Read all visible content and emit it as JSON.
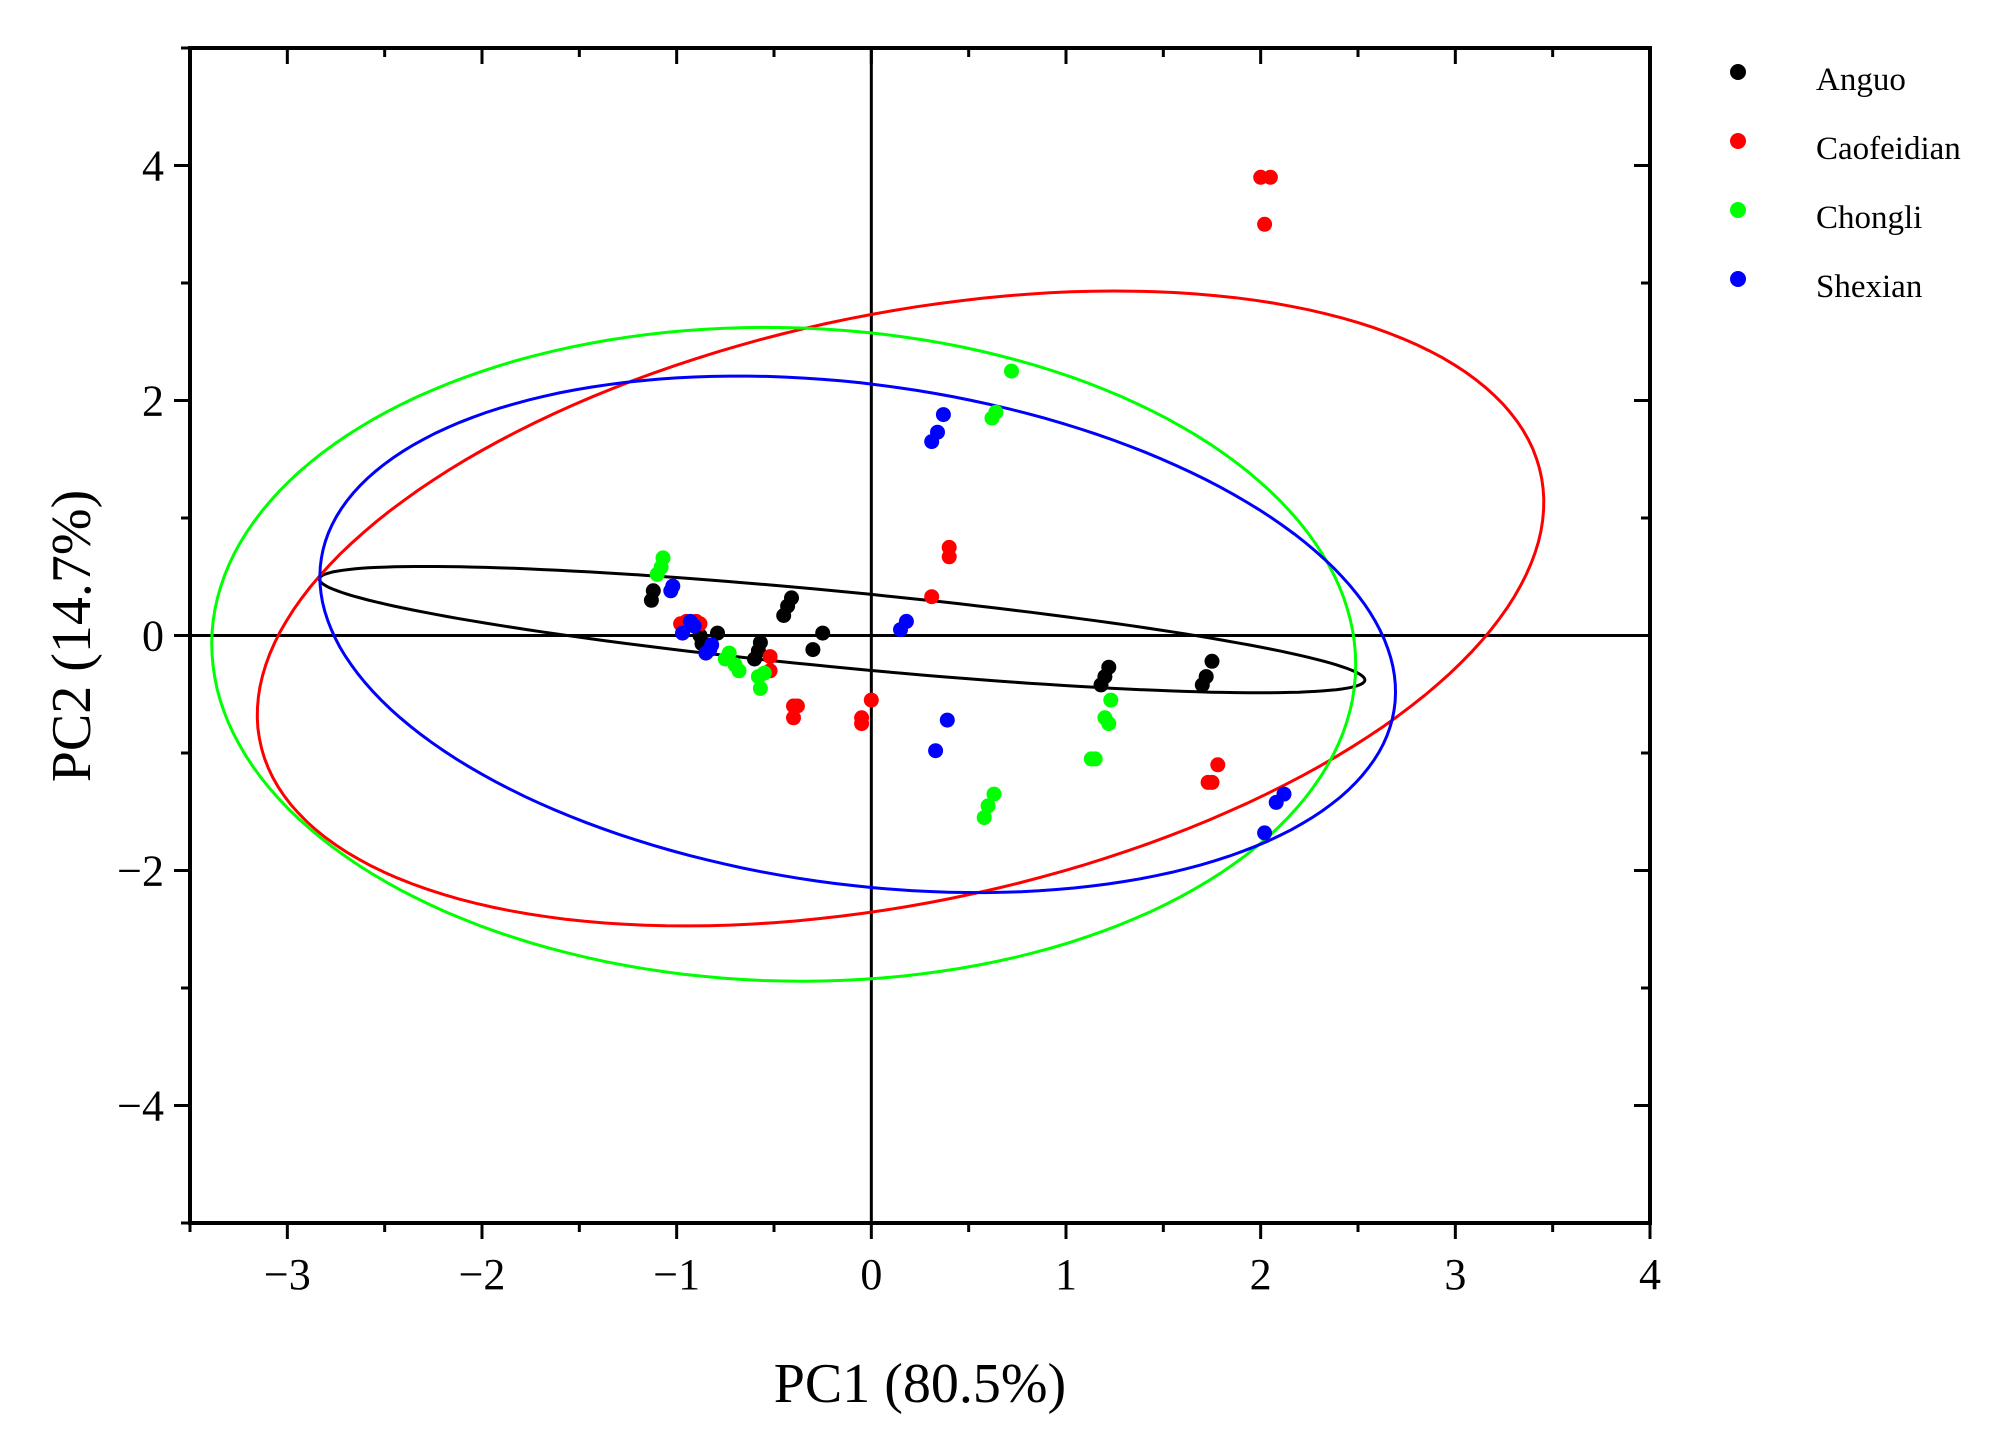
{
  "chart_data": {
    "type": "scatter",
    "title": "",
    "xlabel": "PC1 (80.5%)",
    "ylabel": "PC2 (14.7%)",
    "xlim": [
      -3.5,
      4
    ],
    "ylim": [
      -5,
      5
    ],
    "xticks": [
      -3,
      -2,
      -1,
      0,
      1,
      2,
      3,
      4
    ],
    "yticks": [
      -4,
      -2,
      0,
      2,
      4
    ],
    "xtick_labels": [
      "−3",
      "−2",
      "−1",
      "0",
      "1",
      "2",
      "3",
      "4"
    ],
    "ytick_labels": [
      "−4",
      "−2",
      "0",
      "2",
      "4"
    ],
    "grid": false,
    "reference_lines": {
      "x": 0,
      "y": 0
    },
    "legend_position": "top-right-outside",
    "series": [
      {
        "name": "Anguo",
        "color": "#000000",
        "points": [
          [
            -1.13,
            0.3
          ],
          [
            -1.12,
            0.38
          ],
          [
            -0.88,
            0.0
          ],
          [
            -0.87,
            -0.07
          ],
          [
            -0.84,
            -0.08
          ],
          [
            -0.79,
            0.02
          ],
          [
            -0.6,
            -0.2
          ],
          [
            -0.58,
            -0.13
          ],
          [
            -0.57,
            -0.06
          ],
          [
            -0.45,
            0.17
          ],
          [
            -0.43,
            0.25
          ],
          [
            -0.41,
            0.32
          ],
          [
            -0.3,
            -0.12
          ],
          [
            -0.25,
            0.02
          ],
          [
            1.18,
            -0.42
          ],
          [
            1.2,
            -0.35
          ],
          [
            1.22,
            -0.27
          ],
          [
            1.7,
            -0.42
          ],
          [
            1.72,
            -0.35
          ],
          [
            1.75,
            -0.22
          ]
        ],
        "ellipse": {
          "cx": -0.15,
          "cy": 0.05,
          "rx": 2.72,
          "ry": 0.32,
          "angle_deg": -9.2
        }
      },
      {
        "name": "Caofeidian",
        "color": "#ff0000",
        "points": [
          [
            -0.98,
            0.1
          ],
          [
            -0.95,
            0.12
          ],
          [
            -0.9,
            0.12
          ],
          [
            -0.88,
            0.1
          ],
          [
            -0.52,
            -0.18
          ],
          [
            -0.52,
            -0.3
          ],
          [
            -0.4,
            -0.6
          ],
          [
            -0.38,
            -0.6
          ],
          [
            -0.4,
            -0.7
          ],
          [
            -0.05,
            -0.7
          ],
          [
            -0.05,
            -0.75
          ],
          [
            0.0,
            -0.55
          ],
          [
            0.31,
            0.33
          ],
          [
            0.4,
            0.67
          ],
          [
            0.4,
            0.75
          ],
          [
            1.73,
            -1.25
          ],
          [
            1.75,
            -1.25
          ],
          [
            1.78,
            -1.1
          ],
          [
            2.0,
            3.9
          ],
          [
            2.05,
            3.9
          ],
          [
            2.02,
            3.5
          ]
        ],
        "ellipse": {
          "cx": 0.15,
          "cy": 0.23,
          "rx": 3.55,
          "ry": 2.37,
          "angle_deg": 29.4
        }
      },
      {
        "name": "Chongli",
        "color": "#00ff00",
        "points": [
          [
            -1.1,
            0.52
          ],
          [
            -1.08,
            0.58
          ],
          [
            -1.07,
            0.66
          ],
          [
            -0.75,
            -0.2
          ],
          [
            -0.73,
            -0.15
          ],
          [
            -0.7,
            -0.25
          ],
          [
            -0.68,
            -0.3
          ],
          [
            -0.58,
            -0.35
          ],
          [
            -0.57,
            -0.45
          ],
          [
            -0.55,
            -0.32
          ],
          [
            0.58,
            -1.55
          ],
          [
            0.6,
            -1.45
          ],
          [
            0.63,
            -1.35
          ],
          [
            0.62,
            1.85
          ],
          [
            0.64,
            1.9
          ],
          [
            0.72,
            2.25
          ],
          [
            1.13,
            -1.05
          ],
          [
            1.15,
            -1.05
          ],
          [
            1.2,
            -0.7
          ],
          [
            1.22,
            -0.75
          ],
          [
            1.23,
            -0.55
          ]
        ],
        "ellipse": {
          "cx": -0.45,
          "cy": -0.16,
          "rx": 2.95,
          "ry": 2.77,
          "angle_deg": -15
        }
      },
      {
        "name": "Shexian",
        "color": "#0000ff",
        "points": [
          [
            -1.03,
            0.38
          ],
          [
            -1.02,
            0.42
          ],
          [
            -0.97,
            0.02
          ],
          [
            -0.93,
            0.12
          ],
          [
            -0.91,
            0.08
          ],
          [
            -0.85,
            -0.15
          ],
          [
            -0.83,
            -0.12
          ],
          [
            -0.82,
            -0.08
          ],
          [
            0.15,
            0.05
          ],
          [
            0.18,
            0.12
          ],
          [
            0.31,
            1.65
          ],
          [
            0.34,
            1.73
          ],
          [
            0.37,
            1.88
          ],
          [
            0.33,
            -0.98
          ],
          [
            0.39,
            -0.72
          ],
          [
            2.02,
            -1.68
          ],
          [
            2.08,
            -1.42
          ],
          [
            2.12,
            -1.35
          ]
        ],
        "ellipse": {
          "cx": -0.07,
          "cy": 0.01,
          "rx": 2.86,
          "ry": 2.07,
          "angle_deg": -22
        }
      }
    ]
  }
}
